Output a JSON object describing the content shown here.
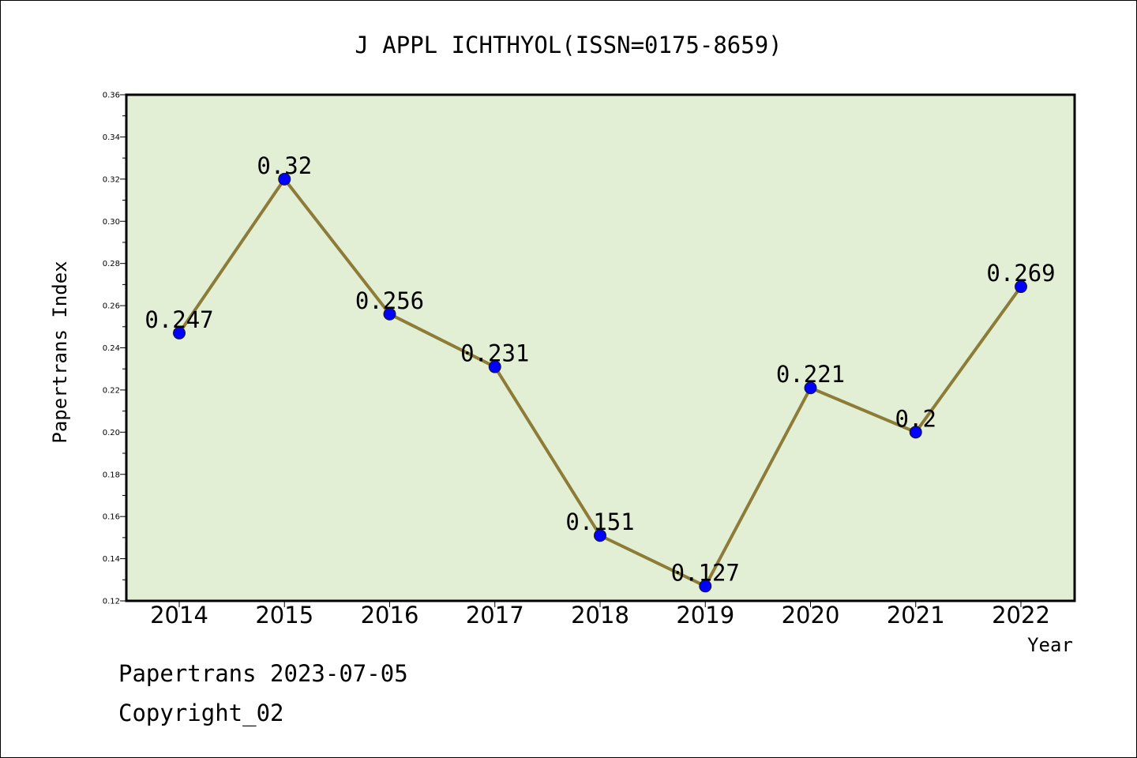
{
  "chart_data": {
    "type": "line",
    "title": "J APPL ICHTHYOL(ISSN=0175-8659)",
    "xlabel": "Year",
    "ylabel": "Papertrans Index",
    "categories": [
      "2014",
      "2015",
      "2016",
      "2017",
      "2018",
      "2019",
      "2020",
      "2021",
      "2022"
    ],
    "values": [
      0.247,
      0.32,
      0.256,
      0.231,
      0.151,
      0.127,
      0.221,
      0.2,
      0.269
    ],
    "data_labels": [
      "0.247",
      "0.32",
      "0.256",
      "0.231",
      "0.151",
      "0.127",
      "0.221",
      "0.2",
      "0.269"
    ],
    "ylim": [
      0.12,
      0.36
    ],
    "yticks": [
      "0.12",
      "0.14",
      "0.16",
      "0.18",
      "0.20",
      "0.22",
      "0.24",
      "0.26",
      "0.28",
      "0.30",
      "0.32",
      "0.34",
      "0.36"
    ],
    "grid": false,
    "colors": {
      "plot_background": "#e2efd5",
      "line": "#8c7c37",
      "marker": "#0000ff"
    }
  },
  "footer": {
    "line1": "Papertrans 2023-07-05",
    "line2": "Copyright_02"
  }
}
